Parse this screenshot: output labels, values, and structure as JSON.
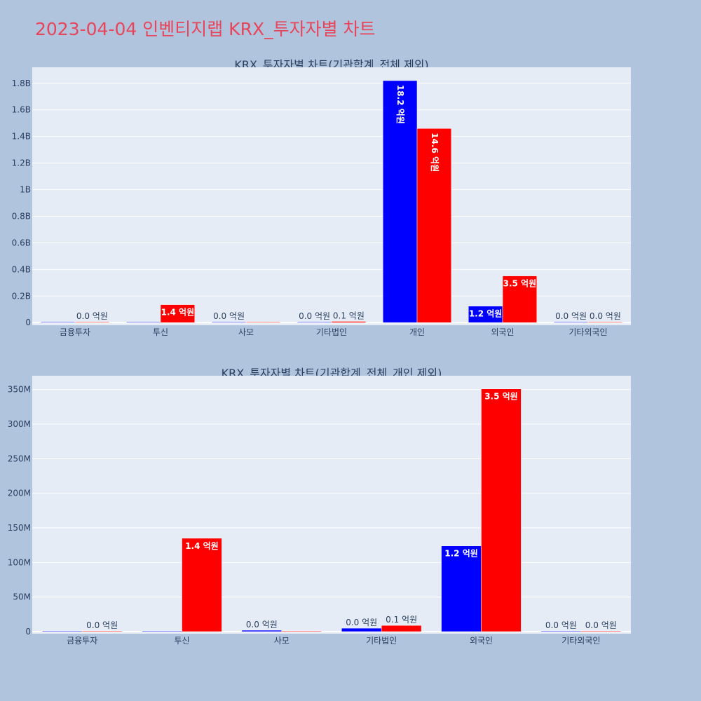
{
  "page_title": "2023-04-04 인벤티지랩 KRX_투자자별 차트",
  "colors": {
    "buy": "#0000ff",
    "sell": "#ff0000",
    "title": "#e8455a",
    "plot_bg": "#e5ecf6",
    "page_bg": "#b0c4de"
  },
  "chart_data": [
    {
      "type": "bar",
      "title": "KRX_투자자별 차트(기관합계_전체 제외)",
      "categories": [
        "금융투자",
        "투신",
        "사모",
        "기타법인",
        "개인",
        "외국인",
        "기타외국인"
      ],
      "series": [
        {
          "color": "#0000ff",
          "values": [
            0,
            0,
            2000000,
            5000000,
            1820000000,
            124000000,
            0
          ],
          "labels": [
            "",
            "",
            "0.0 억원",
            "0.0 억원",
            "18.2 억원",
            "1.2 억원",
            "0.0 억원"
          ]
        },
        {
          "color": "#ff0000",
          "values": [
            0,
            135000000,
            0,
            9000000,
            1460000000,
            351000000,
            0
          ],
          "labels": [
            "0.0 억원",
            "1.4 억원",
            "",
            "0.1 억원",
            "14.6 억원",
            "3.5 억원",
            "0.0 억원"
          ]
        }
      ],
      "yticks": [
        0,
        200000000,
        400000000,
        600000000,
        800000000,
        1000000000,
        1200000000,
        1400000000,
        1600000000,
        1800000000
      ],
      "ytick_labels": [
        "0",
        "0.2B",
        "0.4B",
        "0.6B",
        "0.8B",
        "1B",
        "1.2B",
        "1.4B",
        "1.6B",
        "1.8B"
      ],
      "ylim": [
        -20000000,
        1920000000
      ]
    },
    {
      "type": "bar",
      "title": "KRX_투자자별 차트(기관합계_전체_개인 제외)",
      "categories": [
        "금융투자",
        "투신",
        "사모",
        "기타법인",
        "외국인",
        "기타외국인"
      ],
      "series": [
        {
          "color": "#0000ff",
          "values": [
            0,
            0,
            2000000,
            5000000,
            124000000,
            0
          ],
          "labels": [
            "",
            "",
            "0.0 억원",
            "0.0 억원",
            "1.2 억원",
            "0.0 억원"
          ]
        },
        {
          "color": "#ff0000",
          "values": [
            0,
            135000000,
            0,
            9000000,
            351000000,
            0
          ],
          "labels": [
            "0.0 억원",
            "1.4 억원",
            "",
            "0.1 억원",
            "3.5 억원",
            "0.0 억원"
          ]
        }
      ],
      "yticks": [
        0,
        50000000,
        100000000,
        150000000,
        200000000,
        250000000,
        300000000,
        350000000
      ],
      "ytick_labels": [
        "0",
        "50M",
        "100M",
        "150M",
        "200M",
        "250M",
        "300M",
        "350M"
      ],
      "ylim": [
        -3000000,
        370000000
      ]
    }
  ]
}
